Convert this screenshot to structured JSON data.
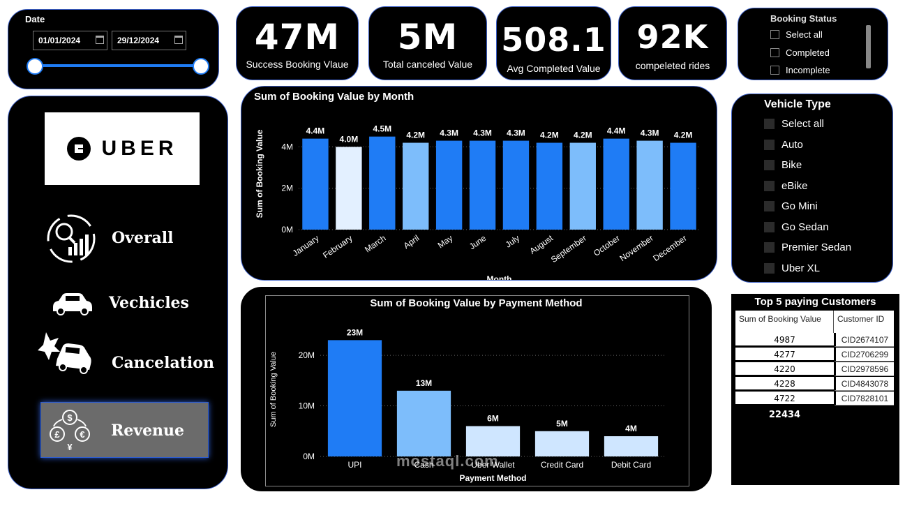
{
  "date_slicer": {
    "title": "Date",
    "start": "01/01/2024",
    "end": "29/12/2024"
  },
  "kpis": [
    {
      "value": "47M",
      "label": "Success Booking Vlaue"
    },
    {
      "value": "5M",
      "label": "Total canceled Value"
    },
    {
      "value": "508.1",
      "label": "Avg Completed Value"
    },
    {
      "value": "92K",
      "label": "compeleted rides"
    }
  ],
  "booking_status": {
    "title": "Booking Status",
    "options": [
      "Select all",
      "Completed",
      "Incomplete"
    ]
  },
  "nav": {
    "logo": "UBER",
    "items": [
      "Overall",
      "Vechicles",
      "Cancelation",
      "Revenue"
    ]
  },
  "vehicle_type": {
    "title": "Vehicle Type",
    "options": [
      "Select all",
      "Auto",
      "Bike",
      "eBike",
      "Go Mini",
      "Go Sedan",
      "Premier Sedan",
      "Uber XL"
    ]
  },
  "top_customers": {
    "title": "Top 5 paying Customers",
    "columns": [
      "Sum of Booking Value",
      "Customer ID"
    ],
    "rows": [
      {
        "value": "4987",
        "id": "CID2674107"
      },
      {
        "value": "4277",
        "id": "CID2706299"
      },
      {
        "value": "4220",
        "id": "CID2978596"
      },
      {
        "value": "4228",
        "id": "CID4843078"
      },
      {
        "value": "4722",
        "id": "CID7828101"
      }
    ],
    "total": "22434"
  },
  "colors": {
    "accent": "#1f7cf5",
    "mid_blue": "#7dbdfb",
    "light_blue": "#cfe6ff",
    "pale_blue": "#e3f0ff"
  },
  "watermark": "mostaql.com",
  "chart_data": [
    {
      "type": "bar",
      "title": "Sum of Booking Value by Month",
      "xlabel": "Month",
      "ylabel": "Sum of Booking Value",
      "categories": [
        "January",
        "February",
        "March",
        "April",
        "May",
        "June",
        "July",
        "August",
        "September",
        "October",
        "November",
        "December"
      ],
      "values": [
        4.4,
        4.0,
        4.5,
        4.2,
        4.3,
        4.3,
        4.3,
        4.2,
        4.2,
        4.4,
        4.3,
        4.2
      ],
      "data_labels": [
        "4.4M",
        "4.0M",
        "4.5M",
        "4.2M",
        "4.3M",
        "4.3M",
        "4.3M",
        "4.2M",
        "4.2M",
        "4.4M",
        "4.3M",
        "4.2M"
      ],
      "bar_colors": [
        "#1f7cf5",
        "#e3f0ff",
        "#1f7cf5",
        "#7dbdfb",
        "#1f7cf5",
        "#1f7cf5",
        "#1f7cf5",
        "#1f7cf5",
        "#7dbdfb",
        "#1f7cf5",
        "#7dbdfb",
        "#1f7cf5"
      ],
      "unit": "M",
      "yticks": [
        "0M",
        "2M",
        "4M"
      ],
      "ytick_values": [
        0,
        2,
        4
      ],
      "ylim": [
        0,
        5.4
      ],
      "grid": true
    },
    {
      "type": "bar",
      "title": "Sum of Booking Value by Payment Method",
      "xlabel": "Payment Method",
      "ylabel": "Sum of Booking Value",
      "categories": [
        "UPI",
        "Cash",
        "Uber Wallet",
        "Credit Card",
        "Debit Card"
      ],
      "values": [
        23,
        13,
        6,
        5,
        4
      ],
      "data_labels": [
        "23M",
        "13M",
        "6M",
        "5M",
        "4M"
      ],
      "bar_colors": [
        "#1f7cf5",
        "#7dbdfb",
        "#cfe6ff",
        "#cfe6ff",
        "#cfe6ff"
      ],
      "unit": "M",
      "yticks": [
        "0M",
        "10M",
        "20M"
      ],
      "ytick_values": [
        0,
        10,
        20
      ],
      "ylim": [
        0,
        26.5
      ],
      "grid": true
    }
  ]
}
